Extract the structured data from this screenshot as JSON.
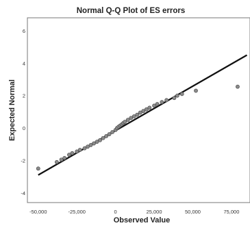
{
  "chart_data": {
    "type": "scatter",
    "title": "Normal Q-Q Plot of ES errors",
    "xlabel": "Observed Value",
    "ylabel": "Expected Normal",
    "xlim": [
      -57000,
      87000
    ],
    "ylim": [
      -4.6,
      6.8
    ],
    "x_ticks": [
      -50000,
      -25000,
      0,
      25000,
      50000,
      75000
    ],
    "x_tick_labels": [
      "-50,000",
      "-25,000",
      "0",
      "25,000",
      "50,000",
      "75,000"
    ],
    "y_ticks": [
      -4,
      -2,
      0,
      2,
      4,
      6
    ],
    "y_tick_labels": [
      "-4",
      "-2",
      "0",
      "2",
      "4",
      "6"
    ],
    "grid": false,
    "reference_line": {
      "x": [
        -50000,
        85000
      ],
      "y": [
        -2.9,
        4.5
      ]
    },
    "points": [
      [
        -50000,
        -2.5
      ],
      [
        -38000,
        -2.1
      ],
      [
        -35000,
        -1.95
      ],
      [
        -33000,
        -1.85
      ],
      [
        -30000,
        -1.65
      ],
      [
        -28000,
        -1.55
      ],
      [
        -25000,
        -1.45
      ],
      [
        -23000,
        -1.35
      ],
      [
        -20000,
        -1.25
      ],
      [
        -18000,
        -1.15
      ],
      [
        -16000,
        -1.05
      ],
      [
        -14000,
        -0.95
      ],
      [
        -12000,
        -0.85
      ],
      [
        -10000,
        -0.75
      ],
      [
        -8000,
        -0.62
      ],
      [
        -6000,
        -0.5
      ],
      [
        -4000,
        -0.38
      ],
      [
        -2000,
        -0.25
      ],
      [
        0,
        -0.12
      ],
      [
        1000,
        0.0
      ],
      [
        2000,
        0.08
      ],
      [
        3000,
        0.15
      ],
      [
        4000,
        0.22
      ],
      [
        5000,
        0.3
      ],
      [
        6000,
        0.38
      ],
      [
        8000,
        0.5
      ],
      [
        10000,
        0.62
      ],
      [
        12000,
        0.72
      ],
      [
        14000,
        0.82
      ],
      [
        16000,
        0.95
      ],
      [
        18000,
        1.05
      ],
      [
        20000,
        1.15
      ],
      [
        22000,
        1.25
      ],
      [
        25000,
        1.38
      ],
      [
        27000,
        1.48
      ],
      [
        30000,
        1.6
      ],
      [
        33000,
        1.72
      ],
      [
        38000,
        1.85
      ],
      [
        40000,
        2.0
      ],
      [
        43000,
        2.1
      ],
      [
        52000,
        2.3
      ],
      [
        79000,
        2.55
      ]
    ]
  }
}
